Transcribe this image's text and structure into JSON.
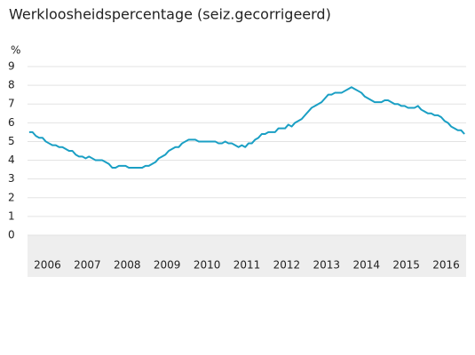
{
  "chart_data": {
    "type": "line",
    "title": "Werkloosheidspercentage (seiz.gecorrigeerd)",
    "y_label": "%",
    "categories": [
      null,
      null,
      null,
      null,
      null,
      null,
      "2006",
      null,
      null,
      null,
      null,
      null,
      null,
      null,
      null,
      null,
      null,
      null,
      "2007",
      null,
      null,
      null,
      null,
      null,
      null,
      null,
      null,
      null,
      null,
      null,
      "2008",
      null,
      null,
      null,
      null,
      null,
      null,
      null,
      null,
      null,
      null,
      null,
      "2009",
      null,
      null,
      null,
      null,
      null,
      null,
      null,
      null,
      null,
      null,
      null,
      "2010",
      null,
      null,
      null,
      null,
      null,
      null,
      null,
      null,
      null,
      null,
      null,
      "2011",
      null,
      null,
      null,
      null,
      null,
      null,
      null,
      null,
      null,
      null,
      null,
      "2012",
      null,
      null,
      null,
      null,
      null,
      null,
      null,
      null,
      null,
      null,
      null,
      "2013",
      null,
      null,
      null,
      null,
      null,
      null,
      null,
      null,
      null,
      null,
      null,
      "2014",
      null,
      null,
      null,
      null,
      null,
      null,
      null,
      null,
      null,
      null,
      null,
      "2015",
      null,
      null,
      null,
      null,
      null,
      null,
      null,
      null,
      null,
      null,
      null,
      "2016",
      null,
      null,
      null,
      null,
      null
    ],
    "series": [
      {
        "name": "Werkloosheid",
        "color": "#1a9fc4",
        "values": [
          5.5,
          5.5,
          5.3,
          5.2,
          5.2,
          5.0,
          4.9,
          4.8,
          4.8,
          4.7,
          4.7,
          4.6,
          4.5,
          4.5,
          4.3,
          4.2,
          4.2,
          4.1,
          4.2,
          4.1,
          4.0,
          4.0,
          4.0,
          3.9,
          3.8,
          3.6,
          3.6,
          3.7,
          3.7,
          3.7,
          3.6,
          3.6,
          3.6,
          3.6,
          3.6,
          3.7,
          3.7,
          3.8,
          3.9,
          4.1,
          4.2,
          4.3,
          4.5,
          4.6,
          4.7,
          4.7,
          4.9,
          5.0,
          5.1,
          5.1,
          5.1,
          5.0,
          5.0,
          5.0,
          5.0,
          5.0,
          5.0,
          4.9,
          4.9,
          5.0,
          4.9,
          4.9,
          4.8,
          4.7,
          4.8,
          4.7,
          4.9,
          4.9,
          5.1,
          5.2,
          5.4,
          5.4,
          5.5,
          5.5,
          5.5,
          5.7,
          5.7,
          5.7,
          5.9,
          5.8,
          6.0,
          6.1,
          6.2,
          6.4,
          6.6,
          6.8,
          6.9,
          7.0,
          7.1,
          7.3,
          7.5,
          7.5,
          7.6,
          7.6,
          7.6,
          7.7,
          7.8,
          7.9,
          7.8,
          7.7,
          7.6,
          7.4,
          7.3,
          7.2,
          7.1,
          7.1,
          7.1,
          7.2,
          7.2,
          7.1,
          7.0,
          7.0,
          6.9,
          6.9,
          6.8,
          6.8,
          6.8,
          6.9,
          6.7,
          6.6,
          6.5,
          6.5,
          6.4,
          6.4,
          6.3,
          6.1,
          6.0,
          5.8,
          5.7,
          5.6,
          5.6,
          5.4
        ]
      }
    ],
    "ylim": [
      0,
      9
    ],
    "yticks": [
      0,
      1,
      2,
      3,
      4,
      5,
      6,
      7,
      8,
      9
    ],
    "grid": true
  }
}
